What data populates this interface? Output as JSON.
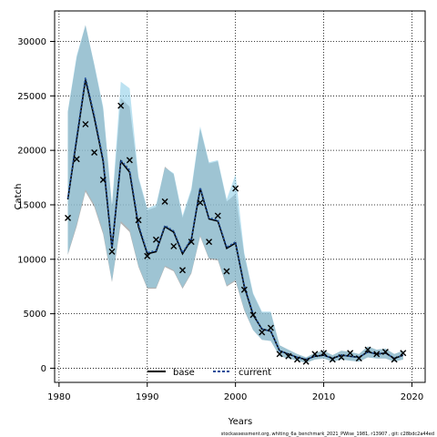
{
  "chart_data": {
    "type": "line",
    "xlabel": "Years",
    "ylabel": "Catch",
    "xlim": [
      1979.5,
      2021.5
    ],
    "ylim": [
      -1300,
      32800
    ],
    "x_ticks": [
      1980,
      1990,
      2000,
      2010,
      2020
    ],
    "y_ticks": [
      0,
      5000,
      10000,
      15000,
      20000,
      25000,
      30000
    ],
    "grid": true,
    "legend_position": "bottom-center",
    "footnote": "stockassessment.org,  whiting_6a_benchmark_2021_PWise_1981,  r13907 ,  git: c28bdc2a44ed",
    "years": [
      1981,
      1982,
      1983,
      1984,
      1985,
      1986,
      1987,
      1988,
      1989,
      1990,
      1991,
      1992,
      1993,
      1994,
      1995,
      1996,
      1997,
      1998,
      1999,
      2000,
      2001,
      2002,
      2003,
      2004,
      2005,
      2006,
      2007,
      2008,
      2009,
      2010,
      2011,
      2012,
      2013,
      2014,
      2015,
      2016,
      2017,
      2018,
      2019
    ],
    "series": [
      {
        "name": "base",
        "color": "#000000",
        "band_color": "#808080",
        "estimate": [
          15500,
          21000,
          26500,
          23000,
          19000,
          11000,
          19000,
          18000,
          13000,
          10500,
          10700,
          13000,
          12500,
          10500,
          11800,
          16500,
          13700,
          13500,
          11000,
          11500,
          7500,
          4900,
          3600,
          3400,
          1600,
          1300,
          1000,
          800,
          1100,
          1200,
          900,
          1200,
          1100,
          1000,
          1500,
          1300,
          1400,
          900,
          1200
        ],
        "lower": [
          10400,
          13000,
          16200,
          14800,
          12300,
          7900,
          13300,
          12500,
          9300,
          7300,
          7300,
          9300,
          8900,
          7300,
          8700,
          12100,
          10000,
          9900,
          7500,
          8000,
          5300,
          3500,
          2600,
          2500,
          1100,
          900,
          700,
          500,
          800,
          900,
          600,
          800,
          700,
          600,
          1000,
          900,
          900,
          600,
          800
        ],
        "upper": [
          23500,
          28500,
          31500,
          27800,
          23800,
          14800,
          24800,
          24000,
          17400,
          14500,
          14800,
          18500,
          17800,
          13800,
          16300,
          22000,
          18800,
          19000,
          15300,
          16000,
          10400,
          6800,
          5100,
          5100,
          2100,
          1700,
          1300,
          1000,
          1400,
          1600,
          1200,
          1600,
          1500,
          1300,
          2000,
          1700,
          1800,
          1300,
          1600
        ]
      },
      {
        "name": "current",
        "color": "#1f4e9a",
        "band_color": "#8fcfe8",
        "estimate": [
          15600,
          21200,
          26700,
          23200,
          19200,
          11100,
          19100,
          18200,
          13200,
          10600,
          10800,
          13100,
          12600,
          10600,
          11900,
          16600,
          13800,
          13600,
          11100,
          11600,
          7600,
          5000,
          3600,
          3400,
          1600,
          1300,
          1000,
          800,
          1100,
          1200,
          900,
          1200,
          1100,
          1000,
          1500,
          1300,
          1400,
          900,
          1200
        ],
        "lower": [
          10500,
          13200,
          16400,
          15000,
          12500,
          8000,
          13500,
          12700,
          9400,
          7400,
          7400,
          9400,
          9000,
          7400,
          8800,
          12200,
          10100,
          10000,
          7600,
          8100,
          5400,
          3500,
          2600,
          2500,
          1100,
          900,
          700,
          500,
          800,
          900,
          600,
          800,
          700,
          600,
          1000,
          900,
          900,
          600,
          800
        ],
        "upper": [
          23600,
          28700,
          31500,
          27900,
          24000,
          15000,
          26300,
          25700,
          17600,
          14700,
          15000,
          18400,
          17900,
          14000,
          16500,
          22200,
          18900,
          19100,
          15500,
          17800,
          10600,
          6900,
          5200,
          5200,
          2100,
          1700,
          1300,
          1000,
          1400,
          1600,
          1200,
          1600,
          1500,
          1300,
          2000,
          1700,
          1800,
          1300,
          1600
        ]
      }
    ],
    "observed": {
      "name": "observed",
      "marker": "x",
      "values": [
        13800,
        19200,
        22400,
        19800,
        17300,
        10700,
        24100,
        19100,
        13600,
        10300,
        11800,
        15300,
        11200,
        9000,
        11600,
        15200,
        11600,
        14000,
        8900,
        16500,
        7200,
        4900,
        3300,
        3700,
        1300,
        1100,
        800,
        600,
        1300,
        1400,
        800,
        1000,
        1400,
        900,
        1700,
        1300,
        1500,
        800,
        1400
      ]
    }
  }
}
